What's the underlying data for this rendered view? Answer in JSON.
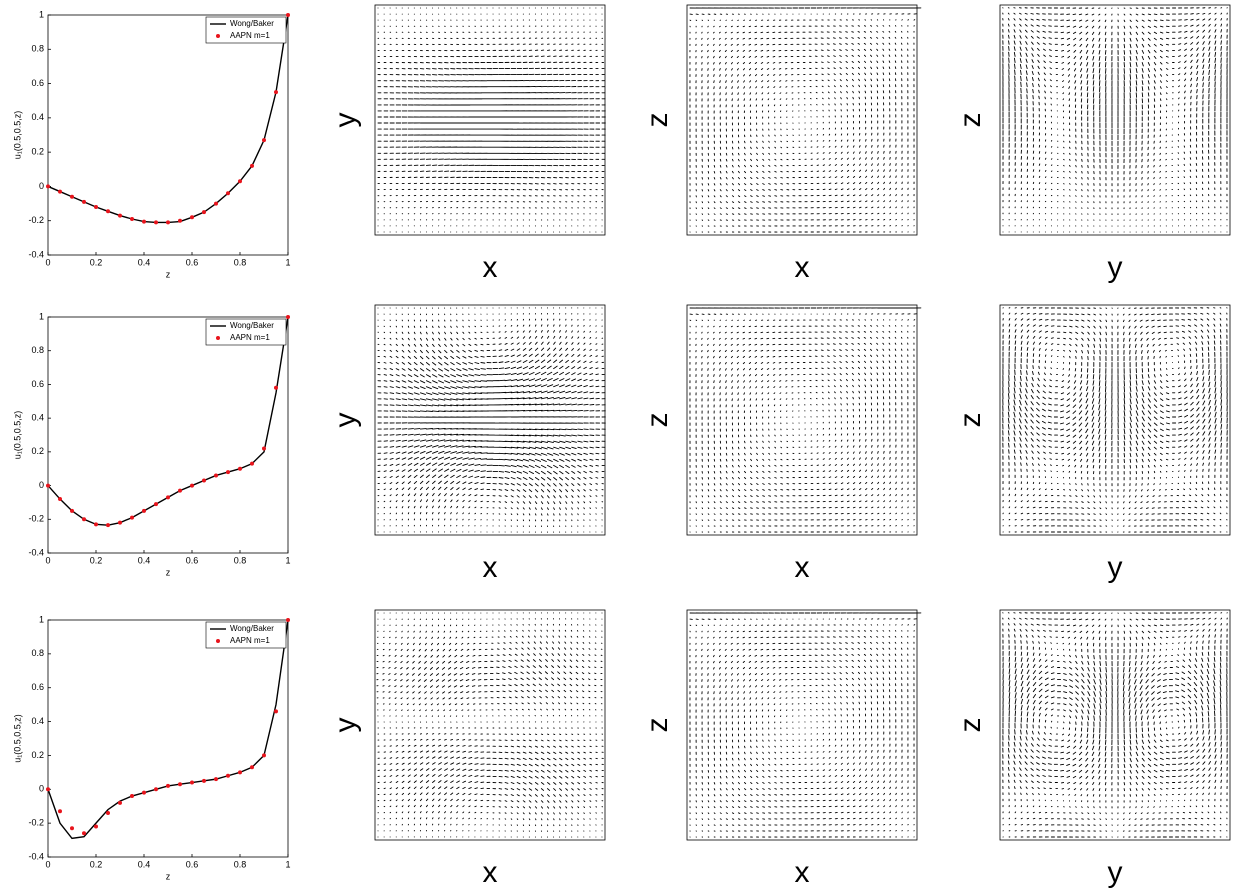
{
  "chart_data": [
    {
      "type": "line",
      "xlabel": "z",
      "ylabel": "u₁(0.5,0.5,z)",
      "x": [
        0,
        0.05,
        0.1,
        0.15,
        0.2,
        0.25,
        0.3,
        0.35,
        0.4,
        0.45,
        0.5,
        0.55,
        0.6,
        0.65,
        0.7,
        0.75,
        0.8,
        0.85,
        0.9,
        0.95,
        1
      ],
      "series": [
        {
          "name": "Wong/Baker",
          "color": "#000000",
          "style": "line",
          "values": [
            0,
            -0.03,
            -0.06,
            -0.09,
            -0.12,
            -0.145,
            -0.17,
            -0.19,
            -0.205,
            -0.21,
            -0.21,
            -0.205,
            -0.18,
            -0.15,
            -0.1,
            -0.04,
            0.03,
            0.12,
            0.27,
            0.55,
            1.0
          ]
        },
        {
          "name": "AAPN m=1",
          "color": "#e8141c",
          "style": "dots",
          "values": [
            0,
            -0.03,
            -0.06,
            -0.09,
            -0.12,
            -0.145,
            -0.17,
            -0.19,
            -0.205,
            -0.21,
            -0.21,
            -0.2,
            -0.18,
            -0.15,
            -0.1,
            -0.04,
            0.03,
            0.12,
            0.27,
            0.55,
            1.0
          ]
        }
      ],
      "xlim": [
        0,
        1
      ],
      "ylim": [
        -0.4,
        1
      ],
      "xticks": [
        0,
        0.2,
        0.4,
        0.6,
        0.8,
        1
      ],
      "yticks": [
        -0.4,
        -0.2,
        0,
        0.2,
        0.4,
        0.6,
        0.8,
        1
      ],
      "legend": "upper right"
    },
    {
      "type": "line",
      "xlabel": "z",
      "ylabel": "u₁(0.5,0.5,z)",
      "x": [
        0,
        0.05,
        0.1,
        0.15,
        0.2,
        0.25,
        0.3,
        0.35,
        0.4,
        0.45,
        0.5,
        0.55,
        0.6,
        0.65,
        0.7,
        0.75,
        0.8,
        0.85,
        0.9,
        0.95,
        1
      ],
      "series": [
        {
          "name": "Wong/Baker",
          "color": "#000000",
          "style": "line",
          "values": [
            0,
            -0.08,
            -0.15,
            -0.2,
            -0.23,
            -0.235,
            -0.22,
            -0.19,
            -0.15,
            -0.11,
            -0.07,
            -0.03,
            0,
            0.03,
            0.06,
            0.08,
            0.1,
            0.13,
            0.2,
            0.55,
            1.0
          ]
        },
        {
          "name": "AAPN m=1",
          "color": "#e8141c",
          "style": "dots",
          "values": [
            0,
            -0.08,
            -0.15,
            -0.2,
            -0.23,
            -0.235,
            -0.22,
            -0.19,
            -0.15,
            -0.11,
            -0.07,
            -0.03,
            0,
            0.03,
            0.06,
            0.08,
            0.1,
            0.13,
            0.22,
            0.58,
            1.0
          ]
        }
      ],
      "xlim": [
        0,
        1
      ],
      "ylim": [
        -0.4,
        1
      ],
      "xticks": [
        0,
        0.2,
        0.4,
        0.6,
        0.8,
        1
      ],
      "yticks": [
        -0.4,
        -0.2,
        0,
        0.2,
        0.4,
        0.6,
        0.8,
        1
      ],
      "legend": "upper right"
    },
    {
      "type": "line",
      "xlabel": "z",
      "ylabel": "u₁(0.5,0.5,z)",
      "x": [
        0,
        0.05,
        0.1,
        0.15,
        0.2,
        0.25,
        0.3,
        0.35,
        0.4,
        0.45,
        0.5,
        0.55,
        0.6,
        0.65,
        0.7,
        0.75,
        0.8,
        0.85,
        0.9,
        0.95,
        1
      ],
      "series": [
        {
          "name": "Wong/Baker",
          "color": "#000000",
          "style": "line",
          "values": [
            0,
            -0.2,
            -0.29,
            -0.28,
            -0.2,
            -0.12,
            -0.07,
            -0.04,
            -0.02,
            0,
            0.02,
            0.03,
            0.04,
            0.05,
            0.06,
            0.08,
            0.1,
            0.13,
            0.2,
            0.5,
            1.0
          ]
        },
        {
          "name": "AAPN m=1",
          "color": "#e8141c",
          "style": "dots",
          "values": [
            0,
            -0.13,
            -0.23,
            -0.26,
            -0.22,
            -0.14,
            -0.08,
            -0.04,
            -0.02,
            0,
            0.02,
            0.03,
            0.04,
            0.05,
            0.06,
            0.08,
            0.1,
            0.13,
            0.2,
            0.46,
            1.0
          ]
        }
      ],
      "xlim": [
        0,
        1
      ],
      "ylim": [
        -0.4,
        1
      ],
      "xticks": [
        0,
        0.2,
        0.4,
        0.6,
        0.8,
        1
      ],
      "yticks": [
        -0.4,
        -0.2,
        0,
        0.2,
        0.4,
        0.6,
        0.8,
        1
      ],
      "legend": "upper right"
    }
  ],
  "quiver_panels": [
    {
      "xlabel": "x",
      "ylabel": "y"
    },
    {
      "xlabel": "x",
      "ylabel": "z"
    },
    {
      "xlabel": "y",
      "ylabel": "z"
    },
    {
      "xlabel": "x",
      "ylabel": "y"
    },
    {
      "xlabel": "x",
      "ylabel": "z"
    },
    {
      "xlabel": "y",
      "ylabel": "z"
    },
    {
      "xlabel": "x",
      "ylabel": "y"
    },
    {
      "xlabel": "x",
      "ylabel": "z"
    },
    {
      "xlabel": "y",
      "ylabel": "z"
    }
  ]
}
